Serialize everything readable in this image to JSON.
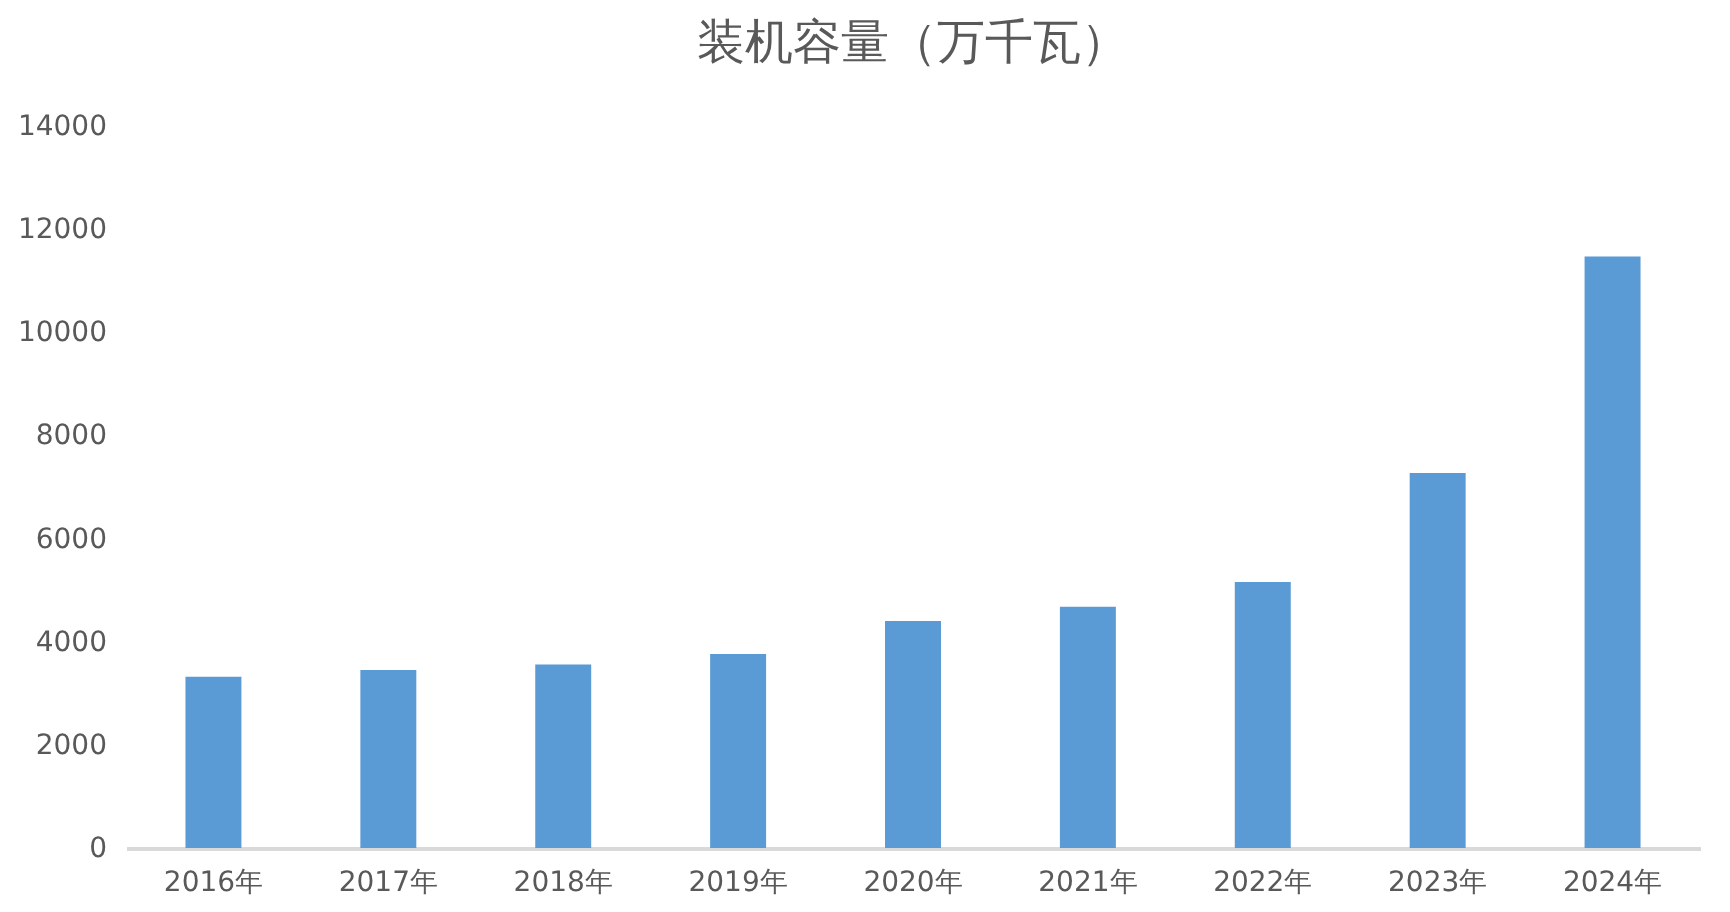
{
  "chart_data": {
    "type": "bar",
    "title": "装机容量（万千瓦）",
    "categories": [
      "2016年",
      "2017年",
      "2018年",
      "2019年",
      "2020年",
      "2021年",
      "2022年",
      "2023年",
      "2024年"
    ],
    "values": [
      3320,
      3450,
      3560,
      3760,
      4400,
      4680,
      5160,
      7270,
      11470
    ],
    "color": "#5b9bd5",
    "ylim": [
      0,
      14000
    ],
    "yticks": [
      0,
      2000,
      4000,
      6000,
      8000,
      10000,
      12000,
      14000
    ],
    "grid": false
  }
}
